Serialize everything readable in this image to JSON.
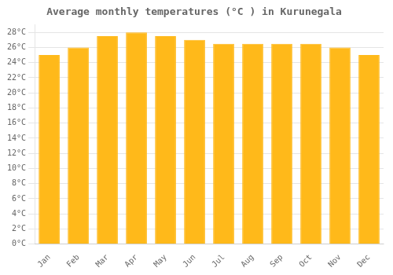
{
  "chart_data": {
    "type": "bar",
    "title": "Average monthly temperatures (°C ) in Kurunegala",
    "categories": [
      "Jan",
      "Feb",
      "Mar",
      "Apr",
      "May",
      "Jun",
      "Jul",
      "Aug",
      "Sep",
      "Oct",
      "Nov",
      "Dec"
    ],
    "values": [
      25.0,
      26.0,
      27.5,
      28.0,
      27.5,
      27.0,
      26.5,
      26.5,
      26.5,
      26.5,
      26.0,
      25.0
    ],
    "color": "#FFB91A",
    "ylim": [
      0,
      29
    ],
    "yticks": [
      {
        "value": 0,
        "label": "0°C"
      },
      {
        "value": 2,
        "label": "2°C"
      },
      {
        "value": 4,
        "label": "4°C"
      },
      {
        "value": 6,
        "label": "6°C"
      },
      {
        "value": 8,
        "label": "8°C"
      },
      {
        "value": 10,
        "label": "10°C"
      },
      {
        "value": 12,
        "label": "12°C"
      },
      {
        "value": 14,
        "label": "14°C"
      },
      {
        "value": 16,
        "label": "16°C"
      },
      {
        "value": 18,
        "label": "18°C"
      },
      {
        "value": 20,
        "label": "20°C"
      },
      {
        "value": 22,
        "label": "22°C"
      },
      {
        "value": 24,
        "label": "24°C"
      },
      {
        "value": 26,
        "label": "26°C"
      },
      {
        "value": 28,
        "label": "28°C"
      }
    ],
    "grid": true
  }
}
